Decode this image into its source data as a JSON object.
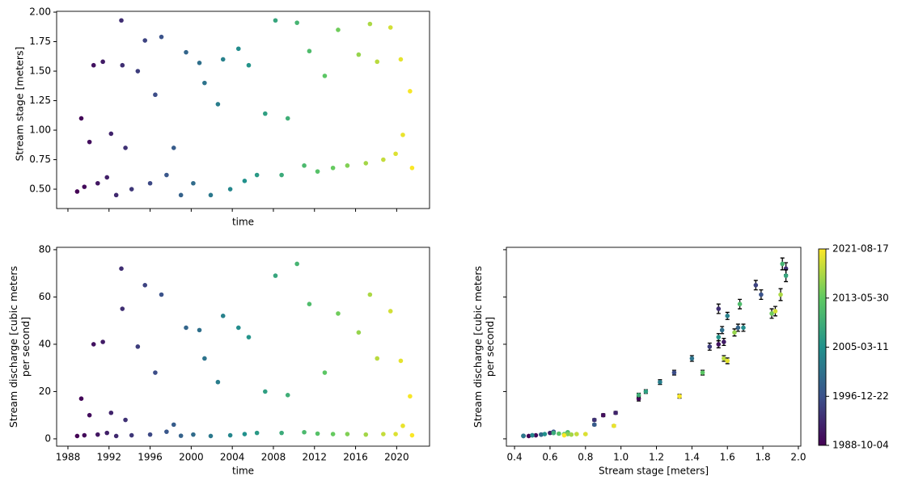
{
  "chart_data": [
    {
      "type": "scatter",
      "xlabel": "time",
      "ylabel": "Stream stage [meters]",
      "colormap": "viridis",
      "color_by": "x",
      "show_xticklabels": false,
      "xlim": [
        1986.9,
        2023.2
      ],
      "ylim": [
        0.336,
        2.007
      ],
      "xticks": [
        1988,
        1992,
        1996,
        2000,
        2004,
        2008,
        2012,
        2016,
        2020
      ],
      "yticks": [
        {
          "value": 0.5,
          "label": "0.50"
        },
        {
          "value": 0.75,
          "label": "0.75"
        },
        {
          "value": 1,
          "label": "1.00"
        },
        {
          "value": 1.25,
          "label": "1.25"
        },
        {
          "value": 1.5,
          "label": "1.50"
        },
        {
          "value": 1.75,
          "label": "1.75"
        },
        {
          "value": 2,
          "label": "2.00"
        }
      ],
      "x": [
        1988.9,
        1989.3,
        1989.6,
        1990.1,
        1990.5,
        1990.9,
        1991.4,
        1991.8,
        1992.2,
        1992.7,
        1993.2,
        1993.3,
        1993.6,
        1994.2,
        1994.8,
        1995.5,
        1996.0,
        1996.5,
        1997.1,
        1997.6,
        1998.3,
        1999.0,
        1999.5,
        2000.2,
        2000.8,
        2001.3,
        2001.9,
        2002.6,
        2003.1,
        2003.8,
        2004.6,
        2005.2,
        2005.6,
        2006.4,
        2007.2,
        2008.2,
        2008.8,
        2009.4,
        2010.3,
        2011.0,
        2011.5,
        2012.3,
        2013.0,
        2013.8,
        2014.3,
        2015.2,
        2016.3,
        2017.0,
        2017.4,
        2018.1,
        2018.7,
        2019.4,
        2019.9,
        2020.4,
        2020.6,
        2021.3,
        2021.5
      ],
      "values": [
        0.48,
        1.1,
        0.52,
        0.9,
        1.55,
        0.55,
        1.58,
        0.6,
        0.97,
        0.45,
        1.93,
        1.55,
        0.85,
        0.5,
        1.5,
        1.76,
        0.55,
        1.3,
        1.79,
        0.62,
        0.85,
        0.45,
        1.66,
        0.55,
        1.57,
        1.4,
        0.45,
        1.22,
        1.6,
        0.5,
        1.69,
        0.57,
        1.55,
        0.62,
        1.14,
        1.93,
        0.62,
        1.1,
        1.91,
        0.7,
        1.67,
        0.65,
        1.46,
        0.68,
        1.85,
        0.7,
        1.64,
        0.72,
        1.9,
        1.58,
        0.75,
        1.87,
        0.8,
        1.6,
        0.96,
        1.33,
        0.68
      ]
    },
    {
      "type": "scatter",
      "xlabel": "time",
      "ylabel": "Stream discharge [cubic meters per second]",
      "colormap": "viridis",
      "color_by": "x",
      "xlim": [
        1986.9,
        2023.2
      ],
      "ylim": [
        -3.1,
        81
      ],
      "xticks": [
        1988,
        1992,
        1996,
        2000,
        2004,
        2008,
        2012,
        2016,
        2020
      ],
      "yticks": [
        0,
        20,
        40,
        60,
        80
      ],
      "x": [
        1988.9,
        1989.3,
        1989.6,
        1990.1,
        1990.5,
        1990.9,
        1991.4,
        1991.8,
        1992.2,
        1992.7,
        1993.2,
        1993.3,
        1993.6,
        1994.2,
        1994.8,
        1995.5,
        1996.0,
        1996.5,
        1997.1,
        1997.6,
        1998.3,
        1999.0,
        1999.5,
        2000.2,
        2000.8,
        2001.3,
        2001.9,
        2002.6,
        2003.1,
        2003.8,
        2004.6,
        2005.2,
        2005.6,
        2006.4,
        2007.2,
        2008.2,
        2008.8,
        2009.4,
        2010.3,
        2011.0,
        2011.5,
        2012.3,
        2013.0,
        2013.8,
        2014.3,
        2015.2,
        2016.3,
        2017.0,
        2017.4,
        2018.1,
        2018.7,
        2019.4,
        2019.9,
        2020.4,
        2020.6,
        2021.3,
        2021.5
      ],
      "values": [
        1.2,
        17,
        1.5,
        10,
        40,
        1.8,
        41,
        2.5,
        11,
        1.2,
        72,
        55,
        8,
        1.5,
        39,
        65,
        1.8,
        28,
        61,
        3,
        6,
        1.3,
        47,
        1.8,
        46,
        34,
        1.2,
        24,
        52,
        1.5,
        47,
        2,
        43,
        2.5,
        20,
        69,
        2.5,
        18.5,
        74,
        2.8,
        57,
        2.2,
        28,
        2,
        53,
        2,
        45,
        1.8,
        61,
        34,
        2,
        54,
        2,
        33,
        5.5,
        18,
        1.5
      ]
    },
    {
      "type": "scatter",
      "xlabel": "Stream stage [meters]",
      "ylabel": "Stream discharge [cubic meters per second]",
      "colormap": "viridis",
      "color_by": "color_values",
      "show_yticklabels": false,
      "xlim": [
        0.354,
        2.014
      ],
      "ylim": [
        -3.1,
        81
      ],
      "xticks": [
        0.4,
        0.6,
        0.8,
        {
          "value": 1,
          "label": "1.0"
        },
        1.2,
        1.4,
        1.6,
        1.8,
        {
          "value": 2,
          "label": "2.0"
        }
      ],
      "yticks": [
        0,
        20,
        40,
        60,
        80
      ],
      "x": [
        0.48,
        1.1,
        0.52,
        0.9,
        1.55,
        0.55,
        1.58,
        0.6,
        0.97,
        0.45,
        1.93,
        1.55,
        0.85,
        0.5,
        1.5,
        1.76,
        0.55,
        1.3,
        1.79,
        0.62,
        0.85,
        0.45,
        1.66,
        0.55,
        1.57,
        1.4,
        0.45,
        1.22,
        1.6,
        0.5,
        1.69,
        0.57,
        1.55,
        0.62,
        1.14,
        1.93,
        0.62,
        1.1,
        1.91,
        0.7,
        1.67,
        0.65,
        1.46,
        0.68,
        1.85,
        0.7,
        1.64,
        0.72,
        1.9,
        1.58,
        0.75,
        1.87,
        0.8,
        1.6,
        0.96,
        1.33,
        0.68
      ],
      "values": [
        1.2,
        17,
        1.5,
        10,
        40,
        1.8,
        41,
        2.5,
        11,
        1.2,
        72,
        55,
        8,
        1.5,
        39,
        65,
        1.8,
        28,
        61,
        3,
        6,
        1.3,
        47,
        1.8,
        46,
        34,
        1.2,
        24,
        52,
        1.5,
        47,
        2,
        43,
        2.5,
        20,
        69,
        2.5,
        18.5,
        74,
        2.8,
        57,
        2.2,
        28,
        2,
        53,
        2,
        45,
        1.8,
        61,
        34,
        2,
        54,
        2,
        33,
        5.5,
        18,
        1.5
      ],
      "errors": [
        0.2,
        1,
        0.2,
        0.6,
        1.5,
        0.2,
        1.5,
        0.2,
        0.6,
        0.2,
        2.5,
        2,
        0.5,
        0.2,
        1.5,
        2,
        0.2,
        1,
        2,
        0.2,
        0.4,
        0.2,
        1.5,
        0.2,
        1.5,
        1.2,
        0.2,
        1,
        1.5,
        0.2,
        1.5,
        0.2,
        1.5,
        0.2,
        0.8,
        2.5,
        0.2,
        0.8,
        2.5,
        0.2,
        2,
        0.2,
        1,
        0.2,
        2,
        0.2,
        1.5,
        0.2,
        2.5,
        1.2,
        0.2,
        2,
        0.2,
        1.2,
        0.4,
        0.8,
        0.2
      ],
      "color_values": [
        1988.9,
        1989.3,
        1989.6,
        1990.1,
        1990.5,
        1990.9,
        1991.4,
        1991.8,
        1992.2,
        1992.7,
        1993.2,
        1993.3,
        1993.6,
        1994.2,
        1994.8,
        1995.5,
        1996.0,
        1996.5,
        1997.1,
        1997.6,
        1998.3,
        1999.0,
        1999.5,
        2000.2,
        2000.8,
        2001.3,
        2001.9,
        2002.6,
        2003.1,
        2003.8,
        2004.6,
        2005.2,
        2005.6,
        2006.4,
        2007.2,
        2008.2,
        2008.8,
        2009.4,
        2010.3,
        2011.0,
        2011.5,
        2012.3,
        2013.0,
        2013.8,
        2014.3,
        2015.2,
        2016.3,
        2017.0,
        2017.4,
        2018.1,
        2018.7,
        2019.4,
        2019.9,
        2020.4,
        2020.6,
        2021.3,
        2021.5
      ],
      "colorbar": {
        "lim": [
          1988.76,
          2021.63
        ],
        "ticks": [
          {
            "value": 1988.76,
            "label": "1988-10-04"
          },
          {
            "value": 1996.97,
            "label": "1996-12-22"
          },
          {
            "value": 2005.19,
            "label": "2005-03-11"
          },
          {
            "value": 2013.41,
            "label": "2013-05-30"
          },
          {
            "value": 2021.63,
            "label": "2021-08-17"
          }
        ]
      }
    }
  ]
}
